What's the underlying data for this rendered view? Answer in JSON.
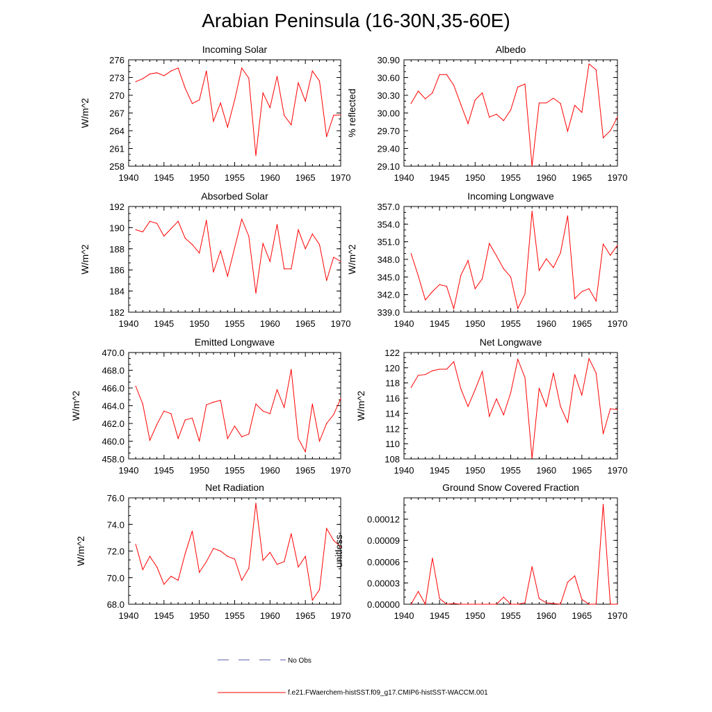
{
  "title": "Arabian Peninsula (16-30N,35-60E)",
  "colors": {
    "model": "#ff0000",
    "obs": "#5a5aa8",
    "axis": "#000000"
  },
  "legend": [
    {
      "label": "No Obs",
      "style": "dashed",
      "color": "#5a5aa8"
    },
    {
      "label": "f.e21.FWaerchem-histSST.f09_g17.CMIP6-histSST-WACCM.001",
      "style": "solid",
      "color": "#ff0000"
    }
  ],
  "chart_data": [
    {
      "type": "line",
      "title": "Incoming Solar",
      "ylabel": "W/m^2",
      "xlim": [
        1940,
        1970
      ],
      "ylim": [
        258,
        276
      ],
      "xticks": [
        "1940",
        "1945",
        "1950",
        "1955",
        "1960",
        "1965",
        "1970"
      ],
      "yticks": [
        "258",
        "261",
        "264",
        "267",
        "270",
        "273",
        "276"
      ],
      "x": [
        1941,
        1942,
        1943,
        1944,
        1945,
        1946,
        1947,
        1948,
        1949,
        1950,
        1951,
        1952,
        1953,
        1954,
        1955,
        1956,
        1957,
        1958,
        1959,
        1960,
        1961,
        1962,
        1963,
        1964,
        1965,
        1966,
        1967,
        1968,
        1969,
        1970
      ],
      "series": [
        {
          "values": [
            272.3,
            272.8,
            273.6,
            273.8,
            273.3,
            274.1,
            274.6,
            271.2,
            268.6,
            269.2,
            274.1,
            265.6,
            268.7,
            264.6,
            269.2,
            274.6,
            272.9,
            259.8,
            270.4,
            267.9,
            273.2,
            266.6,
            265.0,
            272.1,
            269.0,
            274.1,
            272.4,
            263.0,
            266.6,
            266.7
          ]
        }
      ]
    },
    {
      "type": "line",
      "title": "Albedo",
      "ylabel": "% reflected",
      "xlim": [
        1940,
        1970
      ],
      "ylim": [
        29.1,
        30.9
      ],
      "xticks": [
        "1940",
        "1945",
        "1950",
        "1955",
        "1960",
        "1965",
        "1970"
      ],
      "yticks": [
        "29.10",
        "29.40",
        "29.70",
        "30.00",
        "30.30",
        "30.60",
        "30.90"
      ],
      "x": [
        1941,
        1942,
        1943,
        1944,
        1945,
        1946,
        1947,
        1948,
        1949,
        1950,
        1951,
        1952,
        1953,
        1954,
        1955,
        1956,
        1957,
        1958,
        1959,
        1960,
        1961,
        1962,
        1963,
        1964,
        1965,
        1966,
        1967,
        1968,
        1969,
        1970
      ],
      "series": [
        {
          "values": [
            30.16,
            30.37,
            30.24,
            30.34,
            30.65,
            30.65,
            30.47,
            30.14,
            29.82,
            30.22,
            30.34,
            29.93,
            29.98,
            29.87,
            30.05,
            30.44,
            30.49,
            29.1,
            30.17,
            30.17,
            30.25,
            30.16,
            29.69,
            30.13,
            30.01,
            30.83,
            30.73,
            29.58,
            29.7,
            29.93
          ]
        }
      ]
    },
    {
      "type": "line",
      "title": "Absorbed Solar",
      "ylabel": "W/m^2",
      "xlim": [
        1940,
        1970
      ],
      "ylim": [
        182,
        192
      ],
      "xticks": [
        "1940",
        "1945",
        "1950",
        "1955",
        "1960",
        "1965",
        "1970"
      ],
      "yticks": [
        "182",
        "184",
        "186",
        "188",
        "190",
        "192"
      ],
      "x": [
        1941,
        1942,
        1943,
        1944,
        1945,
        1946,
        1947,
        1948,
        1949,
        1950,
        1951,
        1952,
        1953,
        1954,
        1955,
        1956,
        1957,
        1958,
        1959,
        1960,
        1961,
        1962,
        1963,
        1964,
        1965,
        1966,
        1967,
        1968,
        1969,
        1970
      ],
      "series": [
        {
          "values": [
            189.8,
            189.6,
            190.6,
            190.4,
            189.2,
            189.9,
            190.6,
            189.0,
            188.4,
            187.6,
            190.7,
            185.8,
            187.8,
            185.4,
            188.1,
            190.8,
            189.2,
            183.8,
            188.5,
            186.8,
            190.3,
            186.1,
            186.1,
            189.8,
            188.0,
            189.4,
            188.4,
            185.0,
            187.2,
            186.8
          ]
        }
      ]
    },
    {
      "type": "line",
      "title": "Incoming Longwave",
      "ylabel": "W/m^2",
      "xlim": [
        1940,
        1970
      ],
      "ylim": [
        339,
        357
      ],
      "xticks": [
        "1940",
        "1945",
        "1950",
        "1955",
        "1960",
        "1965",
        "1970"
      ],
      "yticks": [
        "339.0",
        "342.0",
        "345.0",
        "348.0",
        "351.0",
        "354.0",
        "357.0"
      ],
      "x": [
        1941,
        1942,
        1943,
        1944,
        1945,
        1946,
        1947,
        1948,
        1949,
        1950,
        1951,
        1952,
        1953,
        1954,
        1955,
        1956,
        1957,
        1958,
        1959,
        1960,
        1961,
        1962,
        1963,
        1964,
        1965,
        1966,
        1967,
        1968,
        1969,
        1970
      ],
      "series": [
        {
          "values": [
            349.0,
            345.2,
            341.1,
            342.5,
            343.7,
            343.4,
            339.6,
            345.3,
            347.8,
            343.0,
            344.7,
            350.7,
            348.6,
            346.4,
            345.0,
            339.6,
            342.1,
            356.2,
            346.1,
            348.1,
            346.6,
            349.1,
            355.4,
            341.3,
            342.5,
            343.0,
            340.9,
            350.6,
            348.7,
            350.4
          ]
        }
      ]
    },
    {
      "type": "line",
      "title": "Emitted Longwave",
      "ylabel": "W/m^2",
      "xlim": [
        1940,
        1970
      ],
      "ylim": [
        458,
        470
      ],
      "xticks": [
        "1940",
        "1945",
        "1950",
        "1955",
        "1960",
        "1965",
        "1970"
      ],
      "yticks": [
        "458.0",
        "460.0",
        "462.0",
        "464.0",
        "466.0",
        "468.0",
        "470.0"
      ],
      "x": [
        1941,
        1942,
        1943,
        1944,
        1945,
        1946,
        1947,
        1948,
        1949,
        1950,
        1951,
        1952,
        1953,
        1954,
        1955,
        1956,
        1957,
        1958,
        1959,
        1960,
        1961,
        1962,
        1963,
        1964,
        1965,
        1966,
        1967,
        1968,
        1969,
        1970
      ],
      "series": [
        {
          "values": [
            466.2,
            464.2,
            460.1,
            461.9,
            463.4,
            463.1,
            460.3,
            462.4,
            462.6,
            460.0,
            464.1,
            464.4,
            464.6,
            460.3,
            461.7,
            460.5,
            460.8,
            464.2,
            463.4,
            463.1,
            465.8,
            463.8,
            468.1,
            460.3,
            458.8,
            464.2,
            460.0,
            462.0,
            463.0,
            464.8
          ]
        }
      ]
    },
    {
      "type": "line",
      "title": "Net Longwave",
      "ylabel": "W/m^2",
      "xlim": [
        1940,
        1970
      ],
      "ylim": [
        108,
        122
      ],
      "xticks": [
        "1940",
        "1945",
        "1950",
        "1955",
        "1960",
        "1965",
        "1970"
      ],
      "yticks": [
        "108",
        "110",
        "112",
        "114",
        "116",
        "118",
        "120",
        "122"
      ],
      "x": [
        1941,
        1942,
        1943,
        1944,
        1945,
        1946,
        1947,
        1948,
        1949,
        1950,
        1951,
        1952,
        1953,
        1954,
        1955,
        1956,
        1957,
        1958,
        1959,
        1960,
        1961,
        1962,
        1963,
        1964,
        1965,
        1966,
        1967,
        1968,
        1969,
        1970
      ],
      "series": [
        {
          "values": [
            117.4,
            119.0,
            119.1,
            119.6,
            119.8,
            119.8,
            120.8,
            117.2,
            114.9,
            117.1,
            119.5,
            113.6,
            115.9,
            113.8,
            116.7,
            121.1,
            118.7,
            108.1,
            117.3,
            114.9,
            119.3,
            114.9,
            112.8,
            119.1,
            116.4,
            121.2,
            119.3,
            111.3,
            114.6,
            114.5
          ]
        }
      ]
    },
    {
      "type": "line",
      "title": "Net Radiation",
      "ylabel": "W/m^2",
      "xlim": [
        1940,
        1970
      ],
      "ylim": [
        68,
        76
      ],
      "xticks": [
        "1940",
        "1945",
        "1950",
        "1955",
        "1960",
        "1965",
        "1970"
      ],
      "yticks": [
        "68.0",
        "70.0",
        "72.0",
        "74.0",
        "76.0"
      ],
      "x": [
        1941,
        1942,
        1943,
        1944,
        1945,
        1946,
        1947,
        1948,
        1949,
        1950,
        1951,
        1952,
        1953,
        1954,
        1955,
        1956,
        1957,
        1958,
        1959,
        1960,
        1961,
        1962,
        1963,
        1964,
        1965,
        1966,
        1967,
        1968,
        1969,
        1970
      ],
      "series": [
        {
          "values": [
            72.5,
            70.6,
            71.6,
            70.8,
            69.5,
            70.1,
            69.8,
            71.8,
            73.5,
            70.4,
            71.2,
            72.2,
            72.0,
            71.6,
            71.4,
            69.8,
            70.7,
            75.6,
            71.3,
            71.9,
            71.0,
            71.2,
            73.3,
            70.8,
            71.6,
            68.3,
            69.1,
            73.7,
            72.8,
            72.3
          ]
        }
      ]
    },
    {
      "type": "line",
      "title": "Ground Snow Covered Fraction",
      "ylabel": "unitless",
      "xlim": [
        1940,
        1970
      ],
      "ylim": [
        0,
        0.00015
      ],
      "xticks": [
        "1940",
        "1945",
        "1950",
        "1955",
        "1960",
        "1965",
        "1970"
      ],
      "yticks": [
        "0.00000",
        "0.00003",
        "0.00006",
        "0.00009",
        "0.00012"
      ],
      "ytick_values": [
        0,
        3e-05,
        6e-05,
        9e-05,
        0.00012
      ],
      "x": [
        1941,
        1942,
        1943,
        1944,
        1945,
        1946,
        1947,
        1948,
        1949,
        1950,
        1951,
        1952,
        1953,
        1954,
        1955,
        1956,
        1957,
        1958,
        1959,
        1960,
        1961,
        1962,
        1963,
        1964,
        1965,
        1966,
        1967,
        1968,
        1969,
        1970
      ],
      "series": [
        {
          "values": [
            0.0,
            1.8e-05,
            0.0,
            6.5e-05,
            8e-06,
            0.0,
            1e-06,
            0.0,
            0.0,
            0.0,
            0.0,
            0.0,
            0.0,
            1e-05,
            0.0,
            0.0,
            2e-06,
            5.3e-05,
            8e-06,
            2e-06,
            1e-06,
            0.0,
            3.1e-05,
            4e-05,
            7e-06,
            0.0,
            0.0,
            0.000141,
            0.0,
            0.0
          ]
        }
      ]
    }
  ]
}
